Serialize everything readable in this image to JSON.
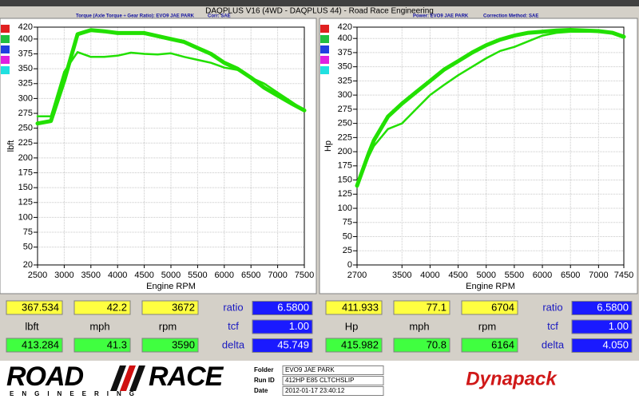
{
  "header": {
    "title": "DAQPLUS V16 (4WD - DAQPLUS 44) - Road Race Engineering",
    "left_caption": "Torque (Axle Torque ÷ Gear Ratio): EVO9 JAE PARK",
    "left_corr": "Corr: SAE",
    "right_caption": "Power: EVO9 JAE PARK",
    "right_corr": "Correction Method: SAE"
  },
  "chart_data": [
    {
      "type": "line",
      "y_label": "lbft",
      "x_label": "Engine RPM",
      "x": [
        2500,
        2750,
        3000,
        3250,
        3500,
        3750,
        4000,
        4250,
        4500,
        4750,
        5000,
        5250,
        5500,
        5750,
        6000,
        6250,
        6500,
        6750,
        7000,
        7250,
        7500
      ],
      "series": [
        {
          "color": "#22e000",
          "values": [
            258,
            262,
            330,
            408,
            415,
            413,
            410,
            410,
            410,
            405,
            400,
            395,
            385,
            375,
            360,
            350,
            335,
            318,
            305,
            292,
            280
          ]
        },
        {
          "color": "#22e000",
          "values": [
            270,
            270,
            345,
            378,
            370,
            370,
            372,
            377,
            375,
            374,
            376,
            370,
            365,
            360,
            352,
            348,
            335,
            325,
            310,
            295,
            280
          ]
        }
      ],
      "xlim": [
        2500,
        7500
      ],
      "xticks": [
        2500,
        3000,
        3500,
        4000,
        4500,
        5000,
        5500,
        6000,
        6500,
        7000,
        7500
      ],
      "ylim": [
        20,
        420
      ],
      "yticks": [
        20,
        50,
        75,
        100,
        125,
        150,
        175,
        200,
        225,
        250,
        275,
        300,
        325,
        350,
        375,
        400,
        420
      ],
      "grid": true
    },
    {
      "type": "line",
      "y_label": "Hp",
      "x_label": "Engine RPM",
      "x": [
        2700,
        2900,
        3000,
        3250,
        3500,
        3750,
        4000,
        4250,
        4500,
        4750,
        5000,
        5250,
        5500,
        5750,
        6000,
        6250,
        6500,
        6750,
        7000,
        7250,
        7450
      ],
      "series": [
        {
          "color": "#22e000",
          "values": [
            140,
            195,
            220,
            262,
            285,
            305,
            325,
            345,
            360,
            375,
            388,
            398,
            405,
            410,
            412,
            414,
            415,
            414,
            413,
            410,
            403
          ]
        },
        {
          "color": "#22e000",
          "values": [
            138,
            190,
            210,
            240,
            250,
            275,
            300,
            318,
            335,
            350,
            365,
            378,
            385,
            395,
            405,
            410,
            412,
            412,
            412,
            410,
            405
          ]
        }
      ],
      "xlim": [
        2700,
        7450
      ],
      "xticks": [
        2700,
        3500,
        4000,
        4500,
        5000,
        5500,
        6000,
        6500,
        7000,
        7450
      ],
      "ylim": [
        0,
        420
      ],
      "yticks": [
        0,
        25,
        50,
        75,
        100,
        125,
        150,
        175,
        200,
        225,
        250,
        275,
        300,
        325,
        350,
        375,
        400,
        420
      ],
      "grid": true
    }
  ],
  "readouts": [
    {
      "top": [
        "367.534",
        "42.2",
        "3672"
      ],
      "units": [
        "lbft",
        "mph",
        "rpm"
      ],
      "bottom": [
        "413.284",
        "41.3",
        "3590"
      ],
      "labels": [
        "ratio",
        "tcf",
        "delta"
      ],
      "settings": [
        "6.5800",
        "1.00",
        "45.749"
      ]
    },
    {
      "top": [
        "411.933",
        "77.1",
        "6704"
      ],
      "units": [
        "Hp",
        "mph",
        "rpm"
      ],
      "bottom": [
        "415.982",
        "70.8",
        "6164"
      ],
      "labels": [
        "ratio",
        "tcf",
        "delta"
      ],
      "settings": [
        "6.5800",
        "1.00",
        "4.050"
      ]
    }
  ],
  "logo": {
    "road": "ROAD",
    "race": "RACE",
    "sub": "ENGINEERING"
  },
  "info": {
    "labels": [
      "Folder",
      "Run ID",
      "Date"
    ],
    "values": [
      "EVO9 JAE PARK",
      "412HP E85 CLTCHSLIP",
      "2012-01-17 23:40:12"
    ]
  },
  "brand": "Dynapack"
}
